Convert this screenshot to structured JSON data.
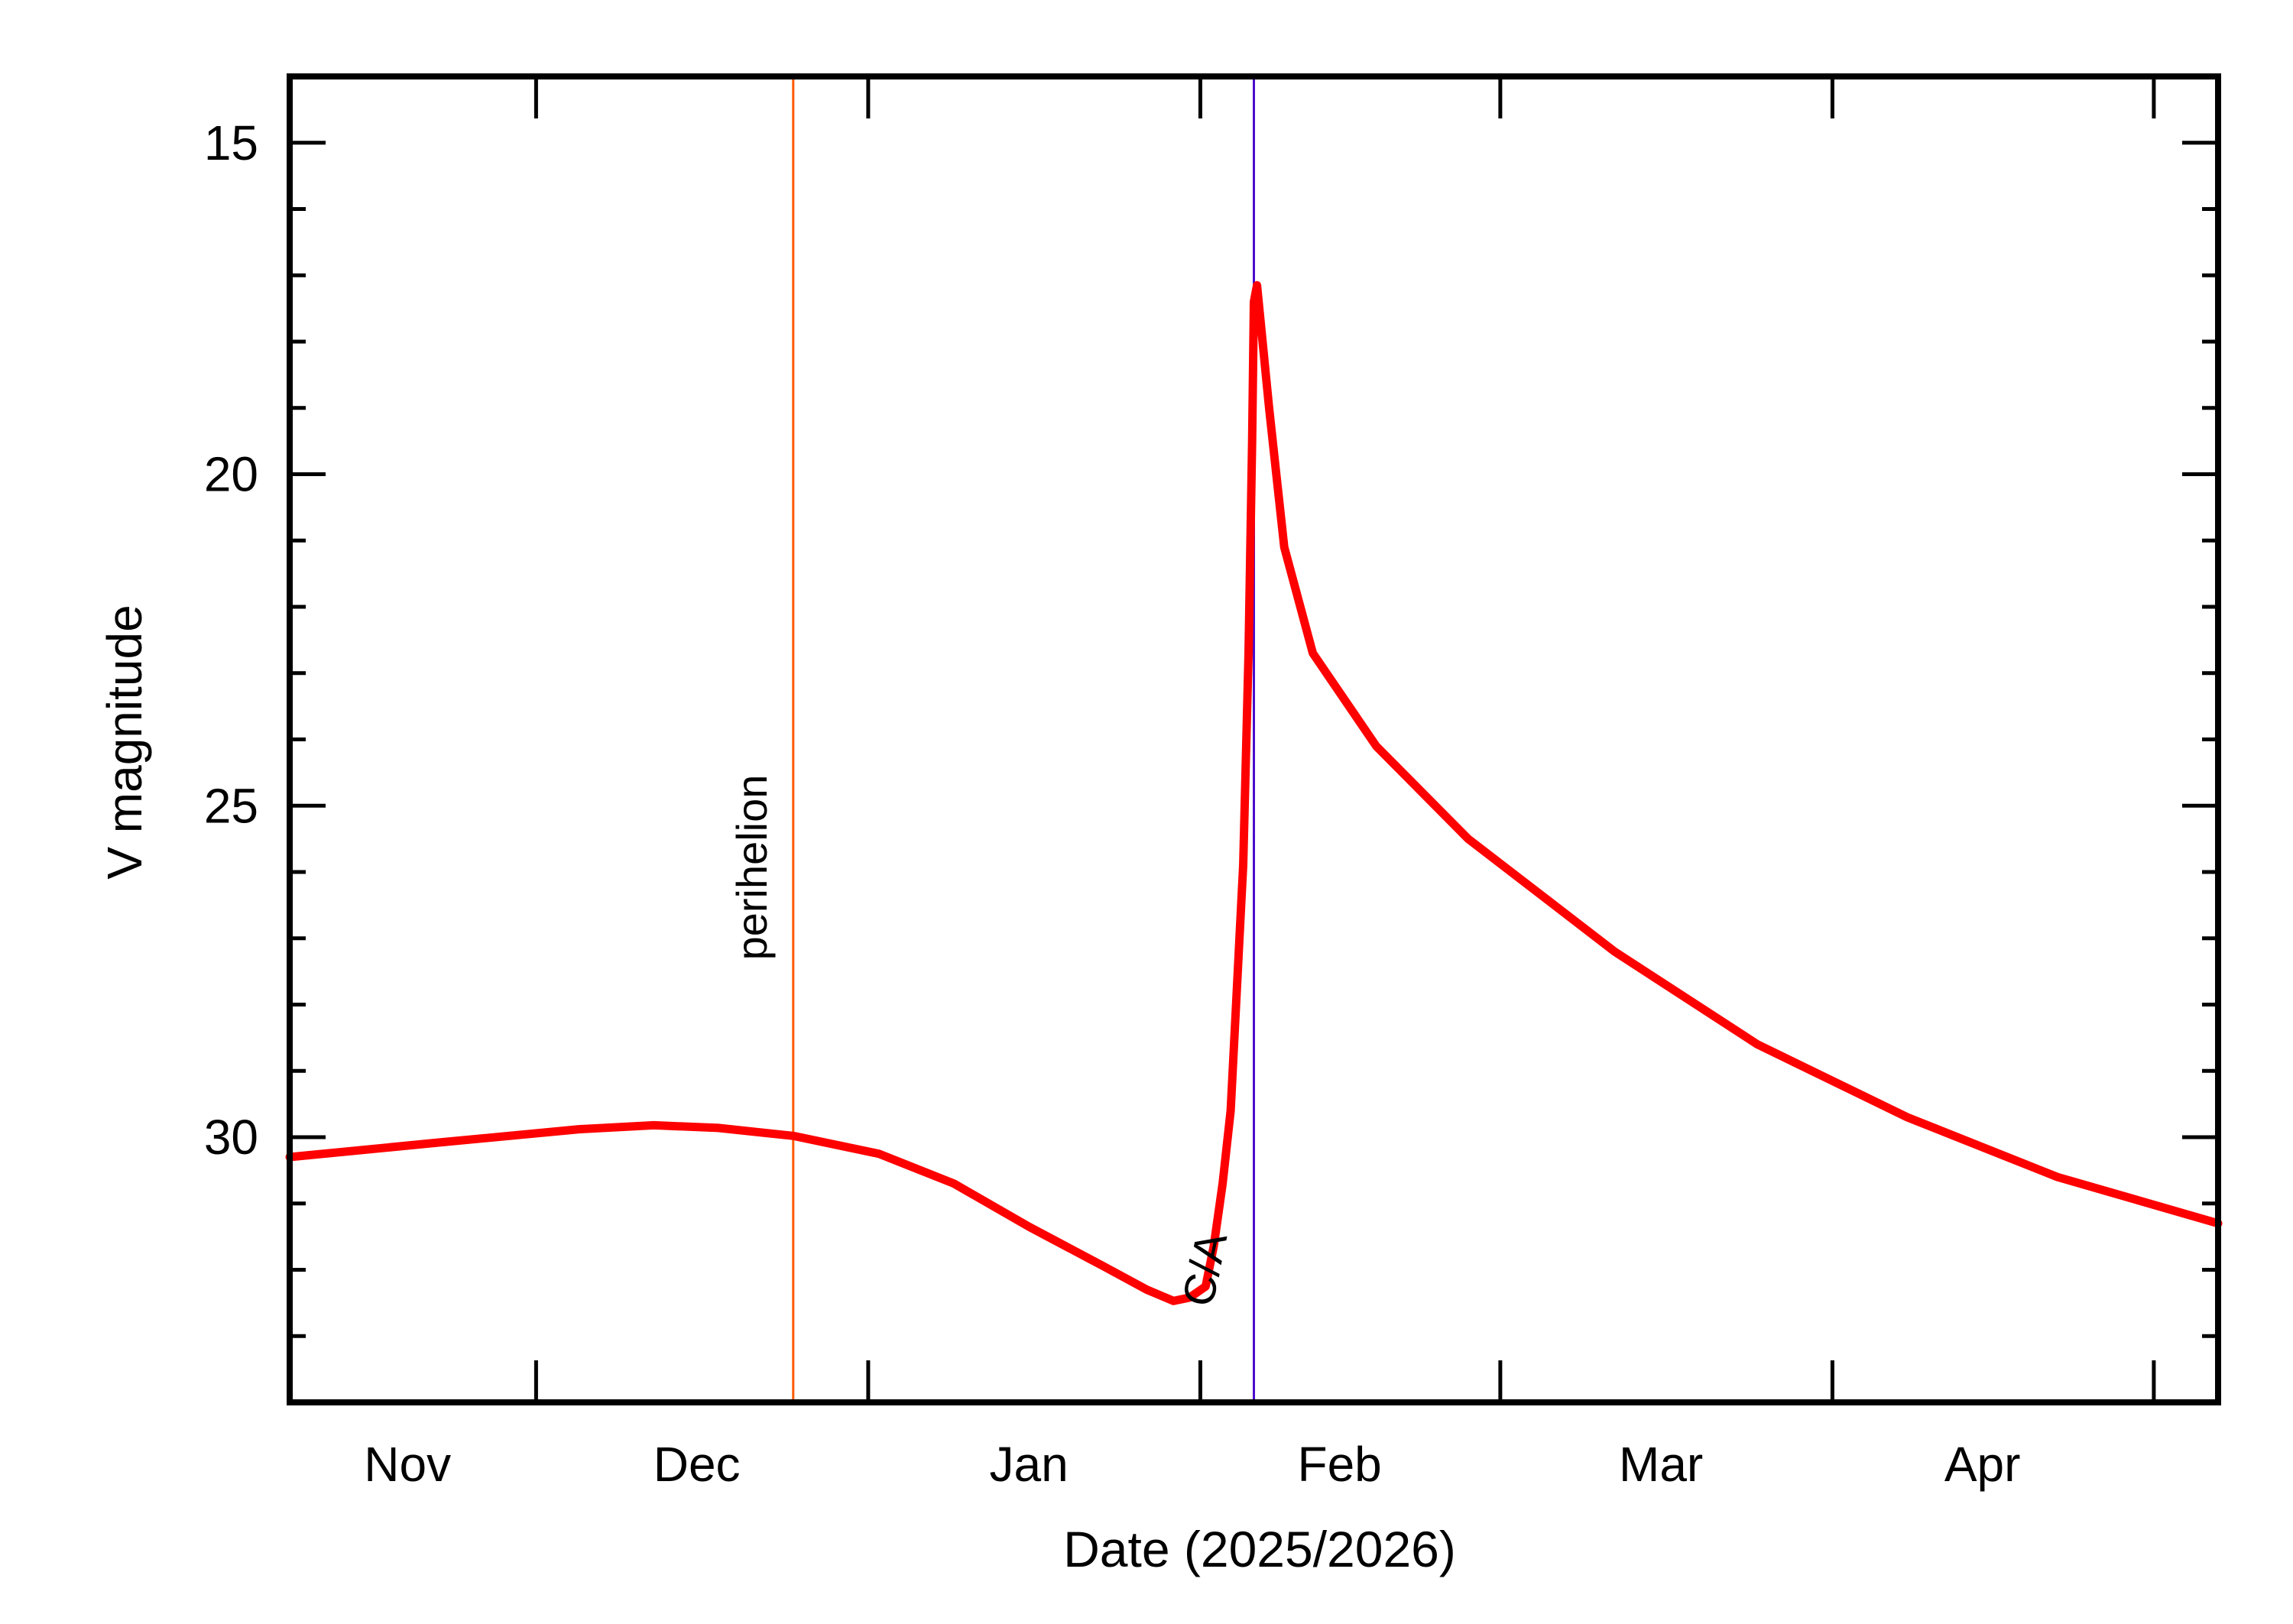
{
  "chart_data": {
    "type": "line",
    "title": "",
    "xlabel": "Date (2025/2026)",
    "ylabel": "V magnitude",
    "xlim": [
      "2025-11-08",
      "2026-05-07"
    ],
    "ylim": [
      34,
      14
    ],
    "y_inverted": true,
    "grid": false,
    "y_major_ticks": [
      15,
      20,
      25,
      30
    ],
    "y_minor_step": 1,
    "x_tick_dates": [
      "2025-12-01",
      "2026-01-01",
      "2026-02-01",
      "2026-03-01",
      "2026-04-01",
      "2026-05-01"
    ],
    "x_month_labels": [
      {
        "label": "Nov",
        "center": "2025-11-19"
      },
      {
        "label": "Dec",
        "center": "2025-12-16"
      },
      {
        "label": "Jan",
        "center": "2026-01-16"
      },
      {
        "label": "Feb",
        "center": "2026-02-14"
      },
      {
        "label": "Mar",
        "center": "2026-03-16"
      },
      {
        "label": "Apr",
        "center": "2026-04-15"
      }
    ],
    "series": [
      {
        "color": "#ff0000",
        "points": [
          [
            "2025-11-08",
            30.3
          ],
          [
            "2025-11-22",
            30.08
          ],
          [
            "2025-12-05",
            29.88
          ],
          [
            "2025-12-12",
            29.82
          ],
          [
            "2025-12-18",
            29.86
          ],
          [
            "2025-12-25",
            29.98
          ],
          [
            "2026-01-02",
            30.25
          ],
          [
            "2026-01-09",
            30.7
          ],
          [
            "2026-01-16",
            31.35
          ],
          [
            "2026-01-23",
            31.95
          ],
          [
            "2026-01-27",
            32.3
          ],
          [
            "2026-01-29T12:00",
            32.47
          ],
          [
            "2026-01-31",
            32.42
          ],
          [
            "2026-02-01T12:00",
            32.25
          ],
          [
            "2026-02-02T06:00",
            31.65
          ],
          [
            "2026-02-03T02:00",
            30.7
          ],
          [
            "2026-02-03T20:00",
            29.6
          ],
          [
            "2026-02-05T00:00",
            25.9
          ],
          [
            "2026-02-05T12:00",
            22.7
          ],
          [
            "2026-02-05T20:00",
            19.5
          ],
          [
            "2026-02-06T00:00",
            17.4
          ],
          [
            "2026-02-06T07:00",
            17.15
          ],
          [
            "2026-02-07T10:00",
            19.0
          ],
          [
            "2026-02-08T20:00",
            21.1
          ],
          [
            "2026-02-11T12:00",
            22.7
          ],
          [
            "2026-02-17T10:00",
            24.1
          ],
          [
            "2026-02-26",
            25.5
          ],
          [
            "2026-03-11T16:00",
            27.2
          ],
          [
            "2026-03-25",
            28.6
          ],
          [
            "2026-04-08",
            29.7
          ],
          [
            "2026-04-22",
            30.6
          ],
          [
            "2026-05-07",
            31.3
          ]
        ]
      }
    ],
    "annotations": [
      {
        "label": "perihelion",
        "date": "2025-12-25",
        "color": "#ff5a00"
      },
      {
        "label": "C/A",
        "date": "2026-02-06",
        "color": "#4a0ccc"
      }
    ]
  }
}
